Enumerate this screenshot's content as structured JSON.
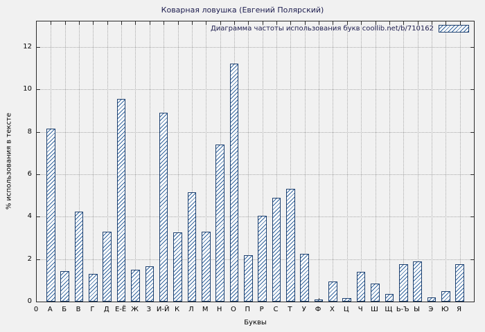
{
  "page": {
    "title": "Коварная ловушка (Евгений Полярский)"
  },
  "chart_data": {
    "type": "bar",
    "title": "Коварная ловушка (Евгений Полярский)",
    "legend": "Диаграмма частоты использования букв coollib.net/b/710162",
    "xlabel": "Буквы",
    "ylabel": "% использования в тексте",
    "origin_label": "0",
    "ylim": [
      0,
      13.2
    ],
    "yticks": [
      0,
      2,
      4,
      6,
      8,
      10,
      12
    ],
    "grid": true,
    "legend_position": "top-right",
    "categories": [
      "А",
      "Б",
      "В",
      "Г",
      "Д",
      "Е-Ё",
      "Ж",
      "З",
      "И-Й",
      "К",
      "Л",
      "М",
      "Н",
      "О",
      "П",
      "Р",
      "С",
      "Т",
      "У",
      "Ф",
      "Х",
      "Ц",
      "Ч",
      "Ш",
      "Щ",
      "Ь-Ъ",
      "Ы",
      "Э",
      "Ю",
      "Я"
    ],
    "values": [
      8.15,
      1.45,
      4.25,
      1.3,
      3.3,
      9.55,
      1.5,
      1.65,
      8.9,
      3.25,
      5.15,
      3.3,
      7.4,
      11.2,
      2.2,
      4.05,
      4.9,
      5.3,
      2.25,
      0.1,
      0.95,
      0.15,
      1.4,
      0.85,
      0.35,
      1.75,
      1.9,
      0.2,
      0.5,
      1.75
    ],
    "colors": {
      "background": "#f1f1f1",
      "bar_fill": "#ffffff",
      "bar_hatch": "#31639c",
      "bar_border": "#1c3f6e",
      "grid": "#a9a9a9",
      "axis": "#2a2a2a",
      "title_text": "#1b1b4d",
      "tick_text": "#000000"
    }
  }
}
